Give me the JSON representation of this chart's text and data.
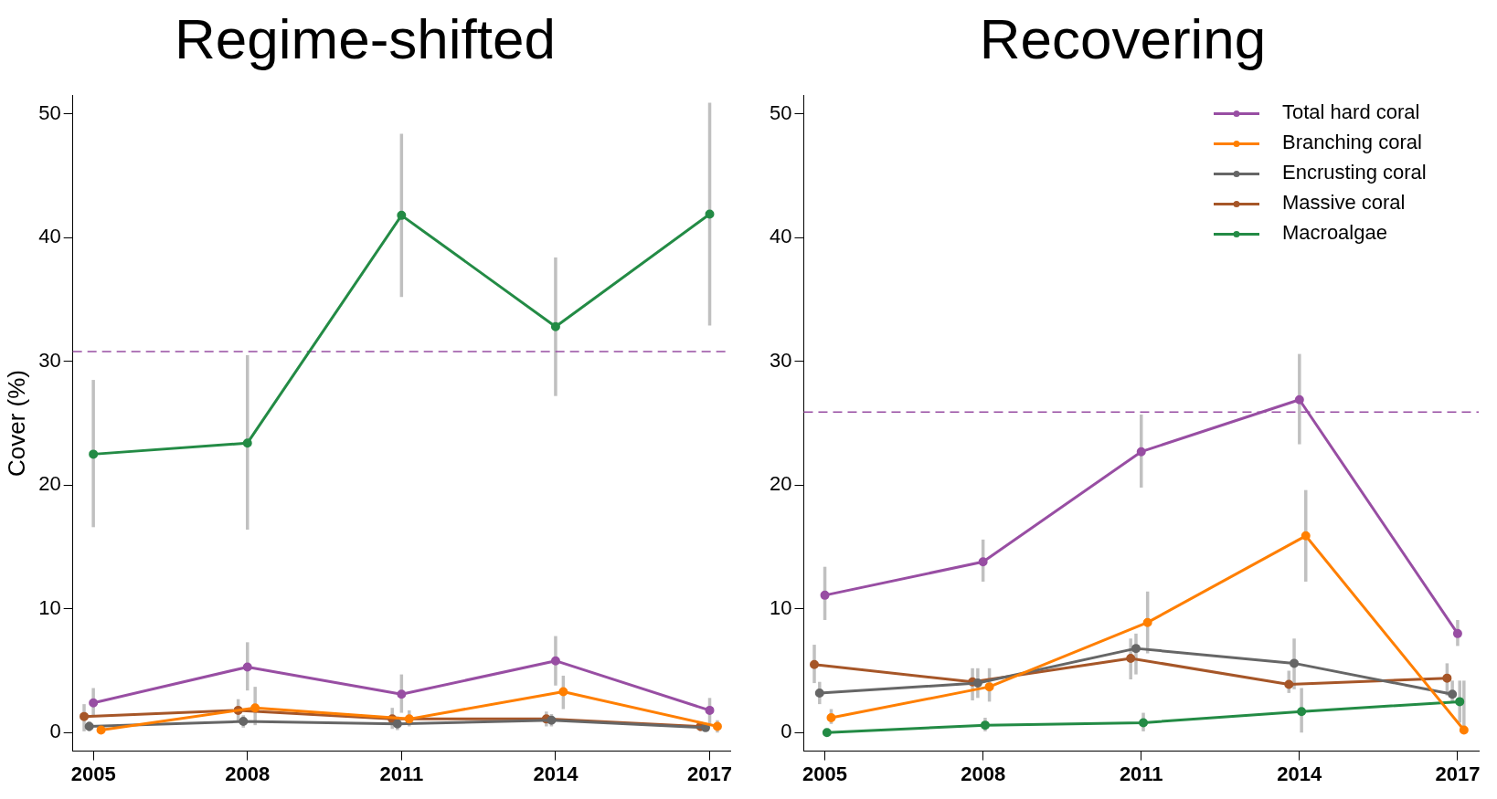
{
  "chart_data": [
    {
      "type": "line",
      "title": "Regime-shifted",
      "ylabel": "Cover (%)",
      "x": [
        2005,
        2008,
        2011,
        2014,
        2017
      ],
      "xlim": [
        2004.6,
        2017.4
      ],
      "xticks": [
        2005,
        2008,
        2011,
        2014,
        2017
      ],
      "ylim": [
        -1.5,
        51.5
      ],
      "yticks": [
        0,
        10,
        20,
        30,
        40,
        50
      ],
      "marker": "circle",
      "legend": false,
      "grid": false,
      "series": [
        {
          "color": "#984ea3",
          "values": [
            2.4,
            5.3,
            3.1,
            5.8,
            1.8
          ],
          "errors": [
            [
              1.3,
              3.6
            ],
            [
              3.4,
              7.3
            ],
            [
              1.6,
              4.7
            ],
            [
              3.8,
              7.8
            ],
            [
              0.7,
              2.8
            ]
          ]
        },
        {
          "color": "#ff7f00",
          "x": [
            2005.15,
            2008.15,
            2011.15,
            2014.15,
            2017.15
          ],
          "values": [
            0.2,
            2.0,
            1.1,
            3.3,
            0.5
          ],
          "errors": [
            [
              0,
              0.6
            ],
            [
              0.6,
              3.7
            ],
            [
              0.5,
              1.8
            ],
            [
              1.9,
              4.6
            ],
            [
              0,
              1.0
            ]
          ]
        },
        {
          "color": "#666666",
          "x": [
            2004.92,
            2007.92,
            2010.92,
            2013.92,
            2016.92
          ],
          "values": [
            0.5,
            0.9,
            0.7,
            1.0,
            0.4
          ],
          "errors": [
            [
              0.1,
              0.9
            ],
            [
              0.4,
              1.4
            ],
            [
              0.2,
              1.3
            ],
            [
              0.5,
              1.5
            ],
            [
              0.1,
              0.7
            ]
          ]
        },
        {
          "color": "#a65628",
          "x": [
            2004.82,
            2007.82,
            2010.82,
            2013.82,
            2016.82
          ],
          "values": [
            1.3,
            1.8,
            1.1,
            1.1,
            0.5
          ],
          "errors": [
            [
              0.1,
              2.3
            ],
            [
              0.9,
              2.7
            ],
            [
              0.3,
              2.0
            ],
            [
              0.5,
              1.7
            ],
            [
              0.1,
              0.9
            ]
          ]
        },
        {
          "color": "#238b45",
          "values": [
            22.5,
            23.4,
            41.8,
            32.8,
            41.9
          ],
          "errors": [
            [
              16.6,
              28.5
            ],
            [
              16.4,
              30.5
            ],
            [
              35.2,
              48.4
            ],
            [
              27.2,
              38.4
            ],
            [
              32.9,
              50.9
            ]
          ]
        }
      ],
      "ref_lines": [
        {
          "axis": "y",
          "value": 30.8,
          "color": "#984ea3",
          "line_style": "dashed"
        }
      ]
    },
    {
      "type": "line",
      "title": "Recovering",
      "x": [
        2005,
        2008,
        2011,
        2014,
        2017
      ],
      "xlim": [
        2004.6,
        2017.4
      ],
      "xticks": [
        2005,
        2008,
        2011,
        2014,
        2017
      ],
      "ylim": [
        -1.5,
        51.5
      ],
      "yticks": [
        0,
        10,
        20,
        30,
        40,
        50
      ],
      "marker": "circle",
      "legend": "top right",
      "grid": false,
      "series": [
        {
          "name": "Total hard coral",
          "color": "#984ea3",
          "values": [
            11.1,
            13.8,
            22.7,
            26.9,
            8.0
          ],
          "errors": [
            [
              9.1,
              13.4
            ],
            [
              12.2,
              15.6
            ],
            [
              19.8,
              25.7
            ],
            [
              23.3,
              30.6
            ],
            [
              7.0,
              9.1
            ]
          ]
        },
        {
          "name": "Branching coral",
          "color": "#ff7f00",
          "x": [
            2005.12,
            2008.12,
            2011.12,
            2014.12,
            2017.12
          ],
          "values": [
            1.2,
            3.7,
            8.9,
            15.9,
            0.2
          ],
          "errors": [
            [
              0.7,
              1.9
            ],
            [
              2.5,
              5.2
            ],
            [
              6.4,
              11.4
            ],
            [
              12.2,
              19.6
            ],
            [
              0,
              4.2
            ]
          ]
        },
        {
          "name": "Encrusting coral",
          "color": "#666666",
          "x": [
            2004.9,
            2007.9,
            2010.9,
            2013.9,
            2016.9
          ],
          "values": [
            3.2,
            4.0,
            6.8,
            5.6,
            3.1
          ],
          "errors": [
            [
              2.3,
              4.1
            ],
            [
              2.8,
              5.2
            ],
            [
              4.7,
              8.0
            ],
            [
              3.5,
              7.6
            ],
            [
              2.5,
              4.2
            ]
          ]
        },
        {
          "name": "Massive coral",
          "color": "#a65628",
          "x": [
            2004.8,
            2007.8,
            2010.8,
            2013.8,
            2016.8
          ],
          "values": [
            5.5,
            4.1,
            6.0,
            3.9,
            4.4
          ],
          "errors": [
            [
              4.0,
              7.1
            ],
            [
              2.6,
              5.2
            ],
            [
              4.3,
              7.6
            ],
            [
              3.2,
              5.0
            ],
            [
              3.0,
              5.6
            ]
          ]
        },
        {
          "name": "Macroalgae",
          "color": "#238b45",
          "x": [
            2005.04,
            2008.04,
            2011.04,
            2014.04,
            2017.04
          ],
          "values": [
            0.0,
            0.6,
            0.8,
            1.7,
            2.5
          ],
          "errors": [
            [
              0,
              0.2
            ],
            [
              0.1,
              1.2
            ],
            [
              0.1,
              1.6
            ],
            [
              0,
              3.6
            ],
            [
              0.8,
              4.2
            ]
          ]
        }
      ],
      "ref_lines": [
        {
          "axis": "y",
          "value": 25.9,
          "color": "#984ea3",
          "line_style": "dashed"
        }
      ]
    }
  ]
}
